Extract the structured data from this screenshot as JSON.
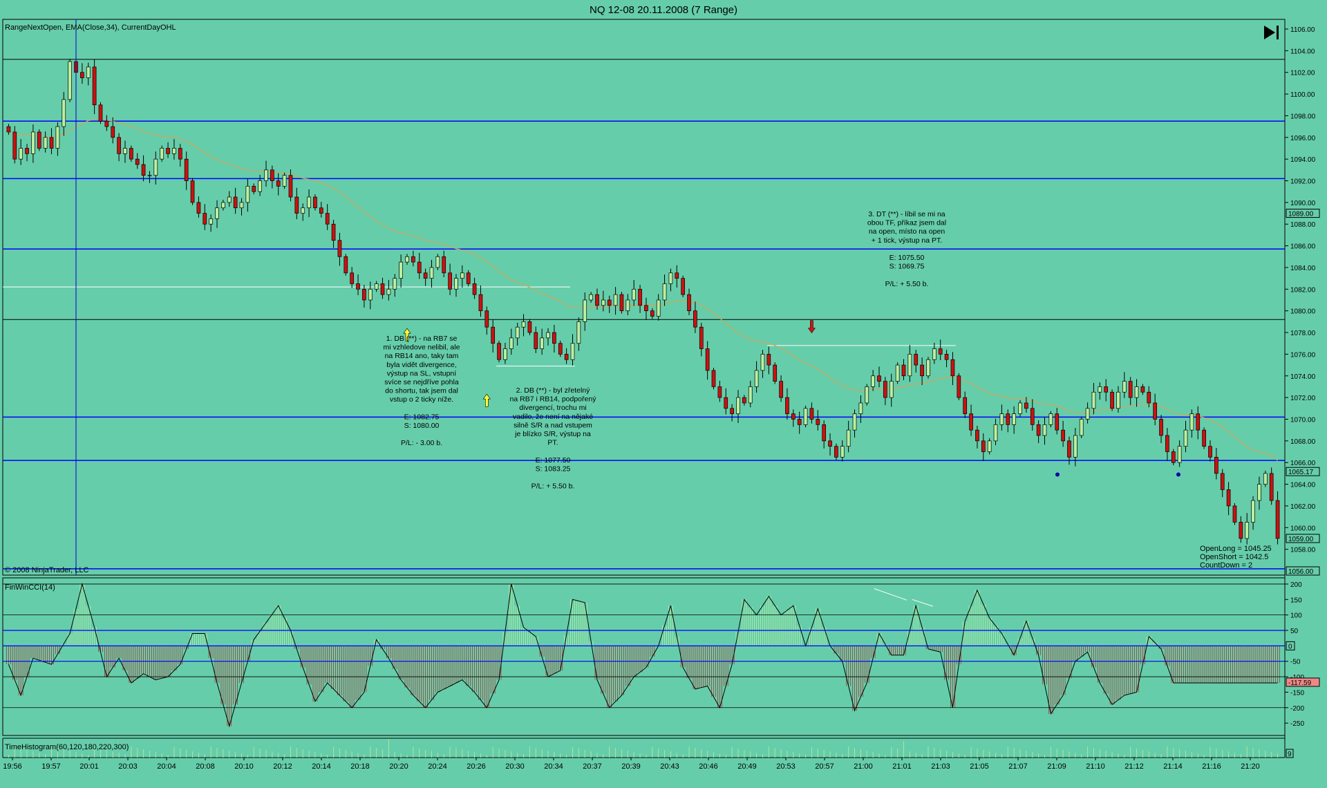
{
  "window": {
    "title": "NQ 12-08  20.11.2008 (7 Range)",
    "indicator_label": "RangeNextOpen, EMA(Close,34), CurrentDayOHL",
    "copyright": "© 2008 NinjaTrader, LLC",
    "end_button_icon": "skip-to-end-icon"
  },
  "chart_data": [
    {
      "type": "candlestick",
      "panel": "price",
      "ylim": [
        1056.0,
        1106.0
      ],
      "y_ticks": [
        "1106.00",
        "1104.00",
        "1102.00",
        "1100.00",
        "1098.00",
        "1096.00",
        "1094.00",
        "1092.00",
        "1090.00",
        "1088.00",
        "1086.00",
        "1084.00",
        "1082.00",
        "1080.00",
        "1078.00",
        "1076.00",
        "1074.00",
        "1072.00",
        "1070.00",
        "1068.00",
        "1066.00",
        "1064.00",
        "1062.00",
        "1060.00",
        "1058.00"
      ],
      "price_markers": [
        {
          "label": "1089.00",
          "value": 1089.0
        },
        {
          "label": "1065.17",
          "value": 1065.17
        },
        {
          "label": "1059.00",
          "value": 1059.0
        },
        {
          "label": "1056.00",
          "value": 1056.0
        }
      ],
      "x_tick_labels": [
        "19:56",
        "19:57",
        "20:01",
        "20:03",
        "20:04",
        "20:08",
        "20:10",
        "20:12",
        "20:14",
        "20:18",
        "20:20",
        "20:24",
        "20:26",
        "20:30",
        "20:34",
        "20:37",
        "20:39",
        "20:43",
        "20:46",
        "20:49",
        "20:53",
        "20:57",
        "21:00",
        "21:01",
        "21:03",
        "21:05",
        "21:07",
        "21:09",
        "21:10",
        "21:12",
        "21:14",
        "21:16",
        "21:20"
      ],
      "closes": [
        1096.5,
        1094.0,
        1095.0,
        1094.5,
        1096.5,
        1095.0,
        1096.0,
        1095.0,
        1097.0,
        1099.5,
        1103.0,
        1102.0,
        1101.5,
        1102.5,
        1099.0,
        1097.5,
        1097.0,
        1096.0,
        1094.5,
        1095.0,
        1094.0,
        1093.5,
        1092.5,
        1092.5,
        1094.0,
        1095.0,
        1094.5,
        1095.0,
        1094.0,
        1092.0,
        1090.0,
        1089.0,
        1088.0,
        1088.5,
        1089.5,
        1090.0,
        1090.5,
        1089.5,
        1090.0,
        1091.5,
        1091.0,
        1092.0,
        1093.0,
        1092.0,
        1091.5,
        1092.5,
        1090.5,
        1089.0,
        1089.5,
        1090.5,
        1089.5,
        1089.0,
        1088.0,
        1086.5,
        1085.0,
        1083.5,
        1082.5,
        1082.0,
        1081.0,
        1082.0,
        1082.5,
        1081.5,
        1082.0,
        1083.0,
        1084.5,
        1085.0,
        1084.5,
        1083.5,
        1083.0,
        1084.0,
        1085.0,
        1083.5,
        1082.0,
        1083.0,
        1083.5,
        1082.5,
        1081.5,
        1080.0,
        1078.5,
        1077.0,
        1075.5,
        1076.5,
        1077.5,
        1078.5,
        1079.0,
        1078.0,
        1076.5,
        1077.5,
        1078.0,
        1077.0,
        1076.0,
        1075.5,
        1077.0,
        1079.0,
        1081.0,
        1081.5,
        1080.5,
        1081.0,
        1080.5,
        1081.5,
        1080.0,
        1081.0,
        1082.0,
        1080.5,
        1080.0,
        1079.5,
        1081.0,
        1082.5,
        1083.5,
        1083.0,
        1081.5,
        1080.0,
        1078.5,
        1076.5,
        1074.5,
        1073.0,
        1072.0,
        1071.0,
        1070.5,
        1072.0,
        1071.5,
        1073.0,
        1074.5,
        1076.0,
        1075.0,
        1073.5,
        1072.0,
        1070.5,
        1070.0,
        1069.5,
        1071.0,
        1070.0,
        1069.5,
        1068.0,
        1067.5,
        1066.5,
        1067.5,
        1069.0,
        1070.5,
        1071.5,
        1073.0,
        1074.0,
        1073.5,
        1072.0,
        1073.5,
        1075.0,
        1074.0,
        1076.0,
        1075.0,
        1074.0,
        1075.5,
        1076.5,
        1076.0,
        1075.5,
        1074.0,
        1072.0,
        1070.5,
        1069.0,
        1068.0,
        1067.0,
        1068.0,
        1069.5,
        1070.5,
        1069.5,
        1070.5,
        1071.5,
        1071.0,
        1069.5,
        1068.5,
        1069.5,
        1070.5,
        1069.0,
        1068.0,
        1066.5,
        1068.5,
        1070.0,
        1071.0,
        1072.5,
        1073.0,
        1072.5,
        1071.0,
        1072.5,
        1073.5,
        1072.0,
        1073.0,
        1072.5,
        1071.5,
        1070.0,
        1068.5,
        1067.0,
        1066.0,
        1067.5,
        1069.0,
        1070.5,
        1069.0,
        1067.5,
        1066.5,
        1065.0,
        1063.5,
        1062.0,
        1060.5,
        1059.0,
        1060.5,
        1062.5,
        1064.0,
        1065.0,
        1062.5,
        1059.0
      ],
      "ema_label": "EMA(Close,34)",
      "horizontal_lines": [
        {
          "value": 1103.2,
          "color": "#000000"
        },
        {
          "value": 1097.5,
          "color": "#0000ff"
        },
        {
          "value": 1092.2,
          "color": "#0000ff"
        },
        {
          "value": 1085.7,
          "color": "#0000ff"
        },
        {
          "value": 1082.2,
          "color": "#ffffff"
        },
        {
          "value": 1079.2,
          "color": "#000000"
        },
        {
          "value": 1070.2,
          "color": "#0000ff"
        },
        {
          "value": 1066.2,
          "color": "#0000ff"
        },
        {
          "value": 1056.2,
          "color": "#0000ff"
        }
      ],
      "annotations": [
        {
          "id": "note1",
          "lines": [
            "1. DB (**) - na RB7 se",
            "mi vzhledove nelibil, ale",
            "na RB14 ano, taky tam",
            "byla vidět divergence,",
            "výstup na SL, vstupní",
            "svíce se nejdříve pohla",
            "do shortu, tak jsem dal",
            "vstup o 2 ticky níže.",
            "",
            "E: 1082.75",
            "S: 1080.00",
            "",
            "P/L: - 3.00 b."
          ]
        },
        {
          "id": "note2",
          "lines": [
            "2. DB (**) - byl zřetelný",
            "na RB7 i RB14, podpořený",
            "divergencí, trochu mi",
            "vadilo, že není na nějaké",
            "silně S/R a nad vstupem",
            "je blízko S/R, výstup na",
            "PT.",
            "",
            "E: 1077.50",
            "S: 1083.25",
            "",
            "P/L: + 5.50 b."
          ]
        },
        {
          "id": "note3",
          "lines": [
            "3. DT (**) - líbil se mi na",
            "obou TF, příkaz jsem dal",
            "na open, místo na open",
            "+ 1 tick, výstup na PT.",
            "",
            "E: 1075.50",
            "S: 1069.75",
            "",
            "P/L: + 5.50 b."
          ]
        }
      ],
      "signal_arrows": [
        {
          "bar": 65,
          "direction": "up",
          "color": "#ffff33"
        },
        {
          "bar": 78,
          "direction": "up",
          "color": "#ffff33"
        },
        {
          "bar": 131,
          "direction": "down",
          "color": "#dd1111"
        }
      ],
      "info_box": [
        "OpenLong = 1045.25",
        "OpenShort = 1042.5",
        "CountDown = 2"
      ]
    },
    {
      "type": "histogram",
      "panel": "cci",
      "label": "FinWinCCI(14)",
      "ylim": [
        -290,
        220
      ],
      "y_ticks": [
        "200",
        "150",
        "100",
        "50",
        "-50",
        "-100",
        "-150",
        "-200",
        "-250"
      ],
      "zero_marker": "0",
      "current_marker": "-117.59",
      "keypoints": [
        [
          0,
          -60
        ],
        [
          2,
          -160
        ],
        [
          4,
          -40
        ],
        [
          7,
          -60
        ],
        [
          10,
          40
        ],
        [
          12,
          200
        ],
        [
          14,
          60
        ],
        [
          16,
          -100
        ],
        [
          18,
          -40
        ],
        [
          20,
          -120
        ],
        [
          22,
          -90
        ],
        [
          24,
          -110
        ],
        [
          26,
          -100
        ],
        [
          28,
          -60
        ],
        [
          30,
          40
        ],
        [
          32,
          40
        ],
        [
          34,
          -120
        ],
        [
          36,
          -260
        ],
        [
          38,
          -120
        ],
        [
          40,
          20
        ],
        [
          44,
          130
        ],
        [
          46,
          50
        ],
        [
          48,
          -70
        ],
        [
          50,
          -180
        ],
        [
          52,
          -120
        ],
        [
          54,
          -160
        ],
        [
          56,
          -200
        ],
        [
          58,
          -150
        ],
        [
          60,
          20
        ],
        [
          62,
          -40
        ],
        [
          64,
          -110
        ],
        [
          66,
          -160
        ],
        [
          68,
          -200
        ],
        [
          70,
          -150
        ],
        [
          72,
          -130
        ],
        [
          74,
          -110
        ],
        [
          76,
          -150
        ],
        [
          78,
          -200
        ],
        [
          80,
          -110
        ],
        [
          82,
          200
        ],
        [
          84,
          60
        ],
        [
          86,
          30
        ],
        [
          88,
          -100
        ],
        [
          90,
          -80
        ],
        [
          92,
          150
        ],
        [
          94,
          140
        ],
        [
          96,
          -110
        ],
        [
          98,
          -200
        ],
        [
          100,
          -160
        ],
        [
          102,
          -100
        ],
        [
          104,
          -70
        ],
        [
          106,
          0
        ],
        [
          108,
          130
        ],
        [
          110,
          -70
        ],
        [
          112,
          -140
        ],
        [
          114,
          -130
        ],
        [
          116,
          -200
        ],
        [
          118,
          -60
        ],
        [
          120,
          150
        ],
        [
          122,
          100
        ],
        [
          124,
          160
        ],
        [
          126,
          100
        ],
        [
          128,
          130
        ],
        [
          130,
          0
        ],
        [
          132,
          120
        ],
        [
          134,
          0
        ],
        [
          136,
          -50
        ],
        [
          138,
          -210
        ],
        [
          140,
          -120
        ],
        [
          142,
          40
        ],
        [
          144,
          -30
        ],
        [
          146,
          -30
        ],
        [
          148,
          130
        ],
        [
          150,
          -10
        ],
        [
          152,
          -20
        ],
        [
          154,
          -200
        ],
        [
          156,
          80
        ],
        [
          158,
          180
        ],
        [
          160,
          90
        ],
        [
          162,
          40
        ],
        [
          164,
          -30
        ],
        [
          166,
          80
        ],
        [
          168,
          -30
        ],
        [
          170,
          -220
        ],
        [
          172,
          -160
        ],
        [
          174,
          -50
        ],
        [
          176,
          -20
        ],
        [
          178,
          -120
        ],
        [
          180,
          -190
        ],
        [
          182,
          -160
        ],
        [
          184,
          -150
        ],
        [
          186,
          30
        ],
        [
          188,
          -10
        ],
        [
          190,
          -120
        ]
      ]
    },
    {
      "type": "histogram",
      "panel": "time",
      "label": "TimeHistogram(60,120,180,220,300)",
      "right_marker": "9"
    }
  ]
}
